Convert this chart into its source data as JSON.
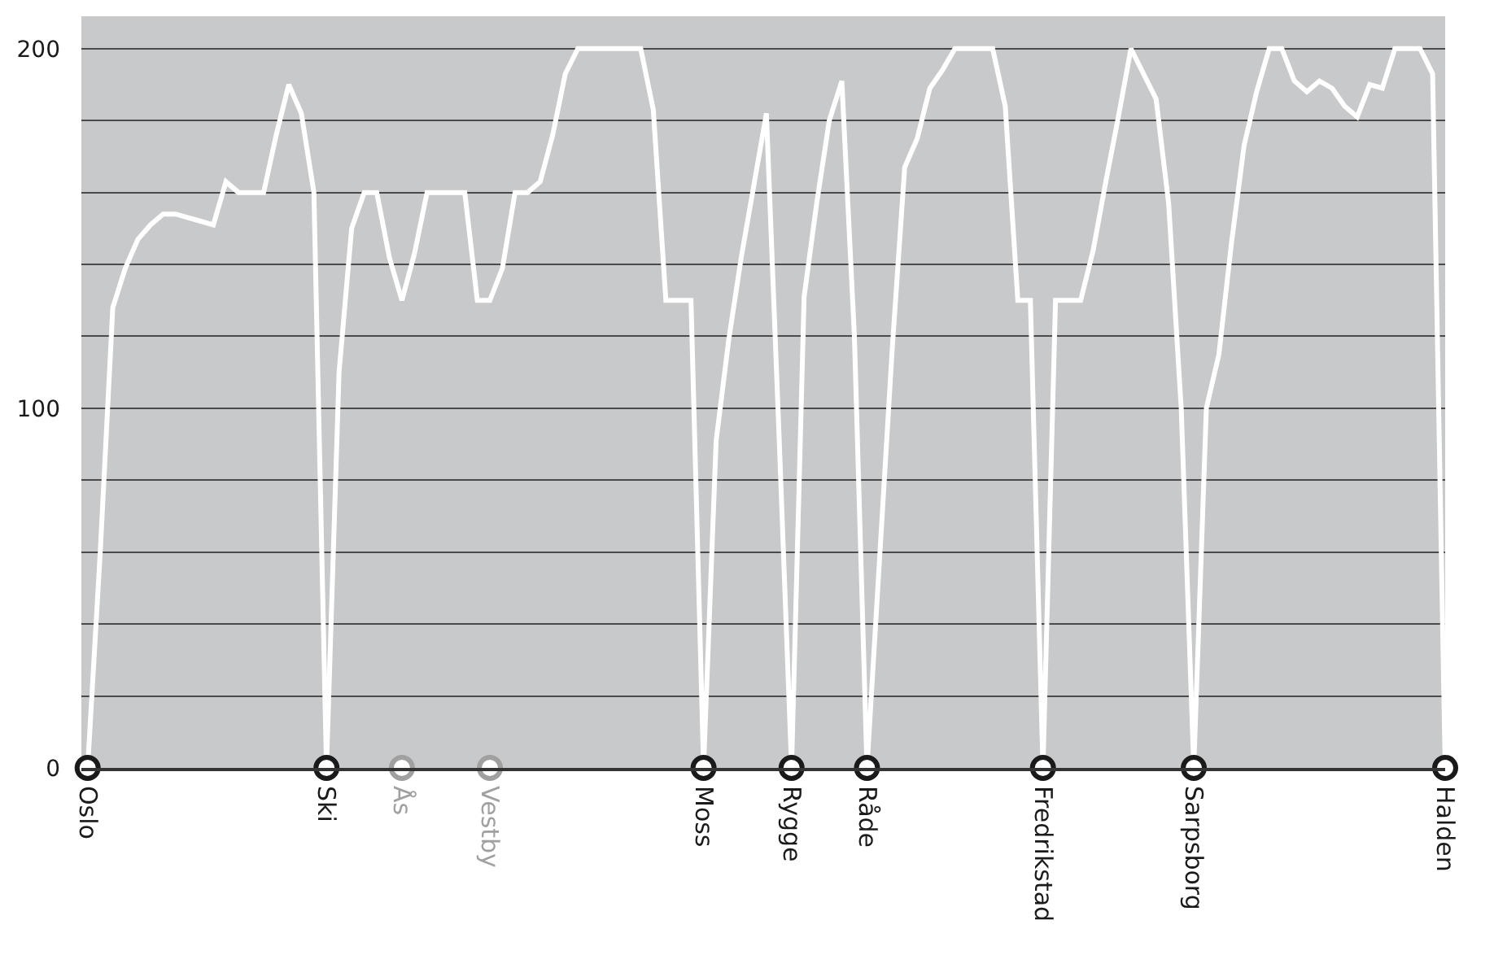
{
  "chart_data": {
    "type": "line",
    "ylim": [
      0,
      209
    ],
    "categories": [
      "Oslo",
      null,
      null,
      null,
      null,
      null,
      null,
      null,
      null,
      null,
      null,
      null,
      null,
      null,
      null,
      null,
      null,
      null,
      null,
      "Ski",
      null,
      null,
      null,
      null,
      null,
      "Ås",
      null,
      null,
      null,
      null,
      null,
      null,
      "Vestby",
      null,
      null,
      null,
      null,
      null,
      null,
      null,
      null,
      null,
      null,
      null,
      null,
      null,
      null,
      null,
      null,
      "Moss",
      null,
      null,
      null,
      null,
      null,
      null,
      "Rygge",
      null,
      null,
      null,
      null,
      null,
      "Råde",
      null,
      null,
      null,
      null,
      null,
      null,
      null,
      null,
      null,
      null,
      null,
      null,
      null,
      "Fredrikstad",
      null,
      null,
      null,
      null,
      null,
      null,
      null,
      null,
      null,
      null,
      null,
      "Sarpsborg",
      null,
      null,
      null,
      null,
      null,
      null,
      null,
      null,
      null,
      null,
      null,
      null,
      null,
      null,
      null,
      null,
      null,
      null,
      null,
      "Halden"
    ],
    "yticks": [
      0,
      {
        "value": 20,
        "label": null
      },
      {
        "value": 40,
        "label": null
      },
      {
        "value": 60,
        "label": null
      },
      {
        "value": 80,
        "label": null
      },
      100,
      {
        "value": 120,
        "label": null
      },
      {
        "value": 140,
        "label": null
      },
      {
        "value": 160,
        "label": null
      },
      {
        "value": 180,
        "label": null
      },
      200
    ],
    "grid": "y",
    "series": [
      {
        "color": "#ffffff",
        "line_style": "solid",
        "values": [
          0,
          60,
          128,
          139,
          147,
          151,
          154,
          154,
          153,
          152,
          151,
          163,
          160,
          160,
          160,
          176,
          190,
          182,
          160,
          0,
          110,
          150,
          160,
          160,
          142,
          130,
          143,
          160,
          160,
          160,
          160,
          130,
          130,
          139,
          160,
          160,
          163,
          176,
          193,
          200,
          200,
          200,
          200,
          200,
          200,
          183,
          130,
          130,
          130,
          0,
          91,
          119,
          142,
          162,
          182,
          93,
          0,
          131,
          157,
          180,
          191,
          120,
          0,
          58,
          116,
          167,
          175,
          189,
          194,
          200,
          200,
          200,
          200,
          184,
          130,
          130,
          0,
          130,
          130,
          130,
          144,
          163,
          181,
          200,
          193,
          186,
          157,
          100,
          0,
          100,
          115,
          146,
          173,
          188,
          200,
          200,
          191,
          188,
          191,
          189,
          184,
          181,
          190,
          189,
          200,
          200,
          200,
          193,
          0
        ]
      },
      {
        "type": "scatter",
        "marker": "circle",
        "values": [
          0,
          null,
          null,
          null,
          null,
          null,
          null,
          null,
          null,
          null,
          null,
          null,
          null,
          null,
          null,
          null,
          null,
          null,
          null,
          0,
          null,
          null,
          null,
          null,
          null,
          0,
          null,
          null,
          null,
          null,
          null,
          null,
          0,
          null,
          null,
          null,
          null,
          null,
          null,
          null,
          null,
          null,
          null,
          null,
          null,
          null,
          null,
          null,
          null,
          0,
          null,
          null,
          null,
          null,
          null,
          null,
          0,
          null,
          null,
          null,
          null,
          null,
          0,
          null,
          null,
          null,
          null,
          null,
          null,
          null,
          null,
          null,
          null,
          null,
          null,
          null,
          0,
          null,
          null,
          null,
          null,
          null,
          null,
          null,
          null,
          null,
          null,
          null,
          0,
          null,
          null,
          null,
          null,
          null,
          null,
          null,
          null,
          null,
          null,
          null,
          null,
          null,
          null,
          null,
          null,
          null,
          null,
          null,
          0
        ],
        "colors": [
          "#1a1a1a",
          null,
          null,
          null,
          null,
          null,
          null,
          null,
          null,
          null,
          null,
          null,
          null,
          null,
          null,
          null,
          null,
          null,
          null,
          "#1a1a1a",
          null,
          null,
          null,
          null,
          null,
          "#a0a0a0",
          null,
          null,
          null,
          null,
          null,
          null,
          "#a0a0a0",
          null,
          null,
          null,
          null,
          null,
          null,
          null,
          null,
          null,
          null,
          null,
          null,
          null,
          null,
          null,
          null,
          "#1a1a1a",
          null,
          null,
          null,
          null,
          null,
          null,
          "#1a1a1a",
          null,
          null,
          null,
          null,
          null,
          "#1a1a1a",
          null,
          null,
          null,
          null,
          null,
          null,
          null,
          null,
          null,
          null,
          null,
          null,
          null,
          "#1a1a1a",
          null,
          null,
          null,
          null,
          null,
          null,
          null,
          null,
          null,
          null,
          null,
          "#1a1a1a",
          null,
          null,
          null,
          null,
          null,
          null,
          null,
          null,
          null,
          null,
          null,
          null,
          null,
          null,
          null,
          null,
          null,
          null,
          null,
          "#1a1a1a"
        ]
      }
    ]
  }
}
